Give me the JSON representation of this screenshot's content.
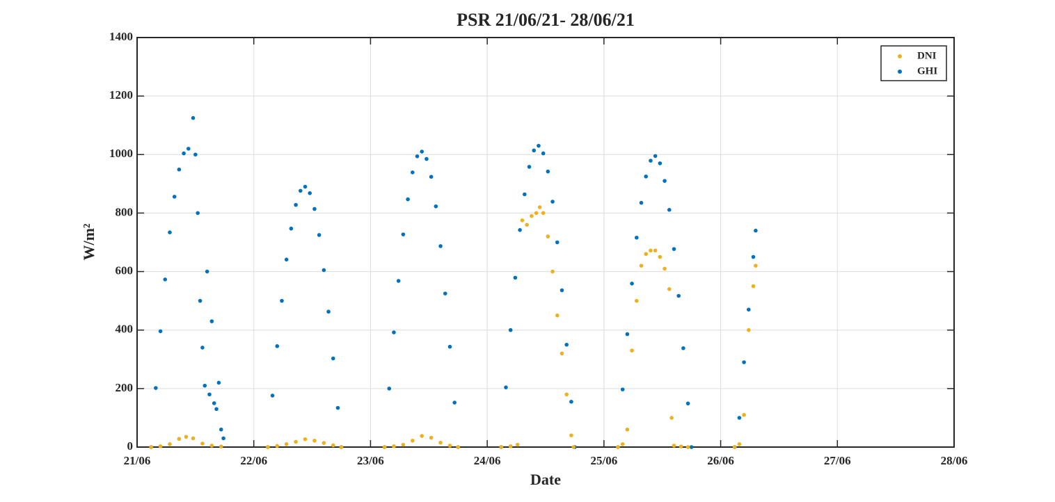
{
  "chart_data": {
    "type": "scatter",
    "title": "PSR 21/06/21- 28/06/21",
    "x_label": "Date",
    "y_label": "W/m²",
    "xlim": [
      0,
      7
    ],
    "xticks": [
      {
        "value": 0,
        "label": "21/06"
      },
      {
        "value": 1,
        "label": "22/06"
      },
      {
        "value": 2,
        "label": "23/06"
      },
      {
        "value": 3,
        "label": "24/06"
      },
      {
        "value": 4,
        "label": "25/06"
      },
      {
        "value": 5,
        "label": "26/06"
      },
      {
        "value": 6,
        "label": "27/06"
      },
      {
        "value": 7,
        "label": "28/06"
      }
    ],
    "ylim": [
      0,
      1400
    ],
    "yticks": [
      0,
      200,
      400,
      600,
      800,
      1000,
      1200,
      1400
    ],
    "grid": true,
    "legend": "upper-right",
    "series": [
      {
        "name": "DNI",
        "color": "#EDB120",
        "x": [
          0.12,
          0.2,
          0.28,
          0.36,
          0.42,
          0.48,
          0.56,
          0.64,
          0.72,
          1.12,
          1.2,
          1.28,
          1.36,
          1.44,
          1.52,
          1.6,
          1.68,
          1.75,
          2.12,
          2.2,
          2.28,
          2.36,
          2.44,
          2.52,
          2.6,
          2.68,
          2.75,
          3.12,
          3.2,
          3.26,
          3.3,
          3.34,
          3.38,
          3.42,
          3.45,
          3.48,
          3.52,
          3.56,
          3.6,
          3.64,
          3.68,
          3.72,
          3.74,
          4.12,
          4.16,
          4.2,
          4.24,
          4.28,
          4.32,
          4.36,
          4.4,
          4.44,
          4.48,
          4.52,
          4.56,
          4.58,
          4.6,
          4.66,
          4.72,
          5.12,
          5.16,
          5.2,
          5.24,
          5.28,
          5.3
        ],
        "values": [
          0,
          3,
          10,
          28,
          35,
          30,
          12,
          5,
          2,
          0,
          4,
          10,
          18,
          27,
          22,
          14,
          6,
          0,
          0,
          3,
          8,
          22,
          38,
          32,
          15,
          5,
          0,
          0,
          3,
          8,
          775,
          760,
          790,
          800,
          820,
          800,
          720,
          600,
          450,
          320,
          180,
          40,
          0,
          0,
          10,
          60,
          330,
          500,
          620,
          660,
          672,
          672,
          650,
          610,
          540,
          100,
          5,
          2,
          0,
          0,
          10,
          110,
          400,
          550,
          620
        ]
      },
      {
        "name": "GHI",
        "color": "#0072BD",
        "x": [
          0.12,
          0.16,
          0.2,
          0.24,
          0.28,
          0.32,
          0.36,
          0.4,
          0.44,
          0.48,
          0.5,
          0.52,
          0.54,
          0.56,
          0.58,
          0.6,
          0.62,
          0.64,
          0.66,
          0.68,
          0.7,
          0.72,
          0.74,
          1.12,
          1.16,
          1.2,
          1.24,
          1.28,
          1.32,
          1.36,
          1.4,
          1.44,
          1.48,
          1.52,
          1.56,
          1.6,
          1.64,
          1.68,
          1.72,
          1.75,
          2.12,
          2.16,
          2.2,
          2.24,
          2.28,
          2.32,
          2.36,
          2.4,
          2.44,
          2.48,
          2.52,
          2.56,
          2.6,
          2.64,
          2.68,
          2.72,
          2.75,
          3.12,
          3.16,
          3.2,
          3.24,
          3.28,
          3.32,
          3.36,
          3.4,
          3.44,
          3.48,
          3.52,
          3.56,
          3.6,
          3.64,
          3.68,
          3.72,
          3.75,
          4.12,
          4.16,
          4.2,
          4.24,
          4.28,
          4.32,
          4.36,
          4.4,
          4.44,
          4.48,
          4.52,
          4.56,
          4.6,
          4.64,
          4.68,
          4.72,
          4.75,
          5.12,
          5.16,
          5.2,
          5.24,
          5.28,
          5.3
        ],
        "values": [
          0,
          202,
          396,
          573,
          734,
          856,
          949,
          1004,
          1020,
          1125,
          1000,
          800,
          500,
          340,
          210,
          600,
          180,
          430,
          150,
          130,
          220,
          60,
          30,
          0,
          176,
          345,
          500,
          641,
          747,
          828,
          876,
          890,
          868,
          814,
          725,
          605,
          463,
          303,
          134,
          0,
          0,
          200,
          392,
          568,
          727,
          847,
          939,
          994,
          1010,
          985,
          924,
          823,
          687,
          525,
          343,
          152,
          0,
          0,
          204,
          400,
          579,
          742,
          864,
          958,
          1014,
          1030,
          1004,
          942,
          839,
          700,
          536,
          350,
          155,
          0,
          0,
          197,
          386,
          559,
          716,
          835,
          925,
          979,
          995,
          970,
          910,
          811,
          677,
          517,
          338,
          149,
          0,
          0,
          100,
          290,
          470,
          650,
          740
        ]
      }
    ]
  }
}
